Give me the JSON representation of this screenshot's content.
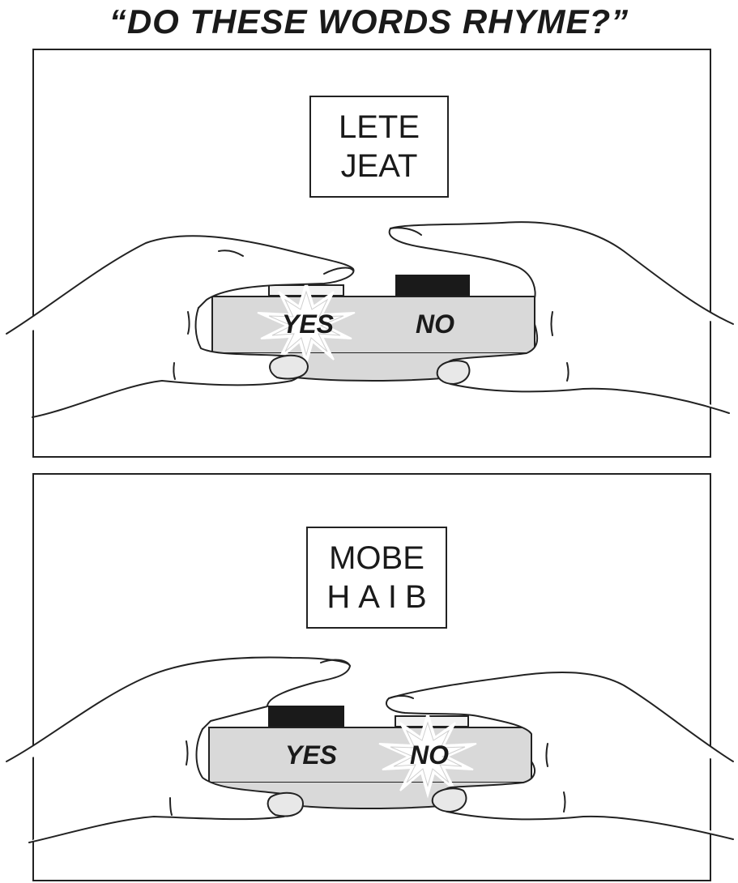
{
  "title": "“DO THESE WORDS RHYME?”",
  "panels": [
    {
      "words": [
        "LETE",
        "JEAT"
      ],
      "yes_label": "YES",
      "no_label": "NO",
      "pressed": "yes"
    },
    {
      "words": [
        "MOBE",
        "HAIB"
      ],
      "yes_label": "YES",
      "no_label": "NO",
      "pressed": "no"
    }
  ],
  "colors": {
    "device": "#d9d9d9",
    "button_up": "#1a1a1a",
    "button_pressed": "#f2f2f2",
    "line": "#222222"
  }
}
